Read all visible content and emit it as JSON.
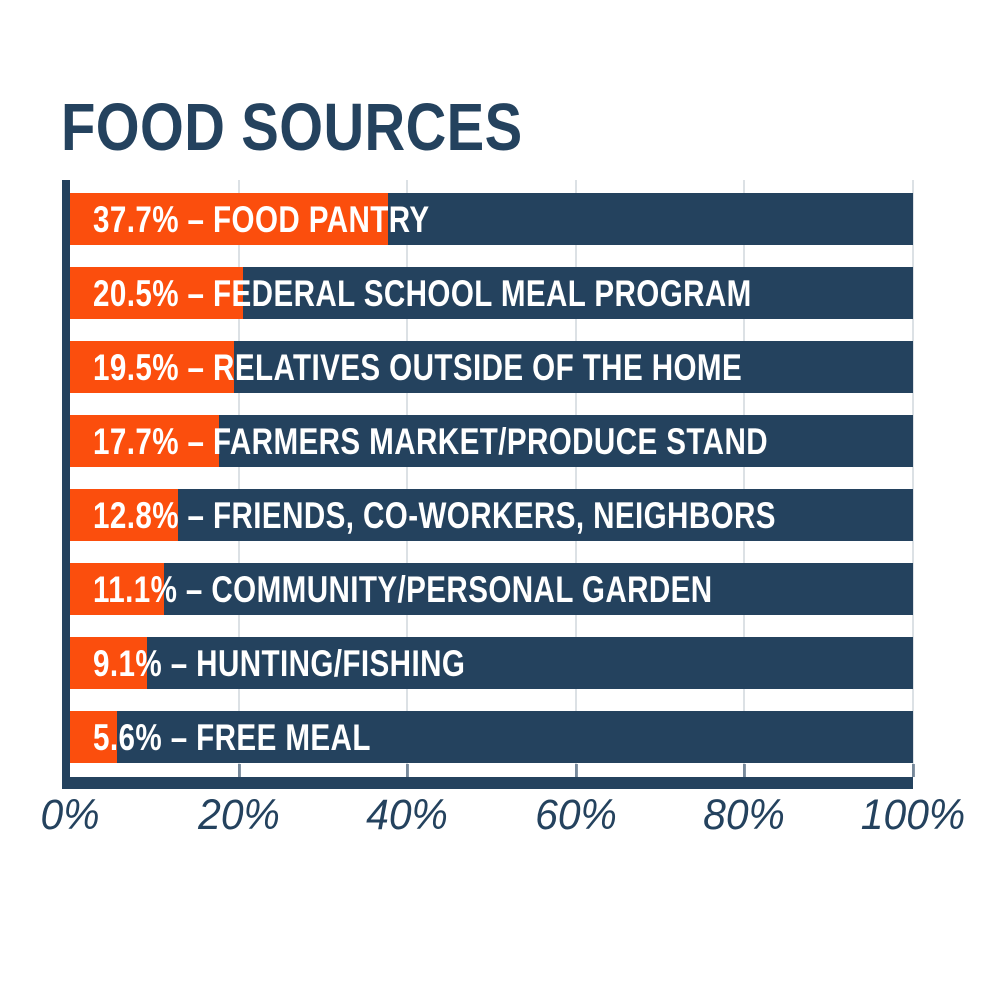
{
  "title": "FOOD SOURCES",
  "chart_data": {
    "type": "bar",
    "orientation": "horizontal",
    "title": "FOOD SOURCES",
    "categories": [
      "FOOD PANTRY",
      "FEDERAL SCHOOL MEAL PROGRAM",
      "RELATIVES OUTSIDE OF THE HOME",
      "FARMERS MARKET/PRODUCE STAND",
      "FRIENDS, CO-WORKERS, NEIGHBORS",
      "COMMUNITY/PERSONAL GARDEN",
      "HUNTING/FISHING",
      "FREE MEAL"
    ],
    "values": [
      37.7,
      20.5,
      19.5,
      17.7,
      12.8,
      11.1,
      9.1,
      5.6
    ],
    "bar_labels": [
      "37.7% – FOOD PANTRY",
      "20.5% – FEDERAL SCHOOL MEAL PROGRAM",
      "19.5% – RELATIVES OUTSIDE OF THE HOME",
      "17.7% – FARMERS MARKET/PRODUCE STAND",
      "12.8% – FRIENDS, CO-WORKERS, NEIGHBORS",
      "11.1% – COMMUNITY/PERSONAL GARDEN",
      "9.1% – HUNTING/FISHING",
      "5.6% – FREE MEAL"
    ],
    "x_ticks": [
      "0%",
      "20%",
      "40%",
      "60%",
      "80%",
      "100%"
    ],
    "xlim": [
      0,
      100
    ],
    "xlabel": "",
    "ylabel": "",
    "legend": "none",
    "grid": "faint vertical gridlines at 20% intervals",
    "colors": {
      "bar_fill_orange": "#FB4E0D",
      "bar_track_navy": "#24425E",
      "bar_label_text": "#FFFFFF",
      "axis_and_title": "#24425E",
      "background": "#FFFFFF"
    }
  }
}
